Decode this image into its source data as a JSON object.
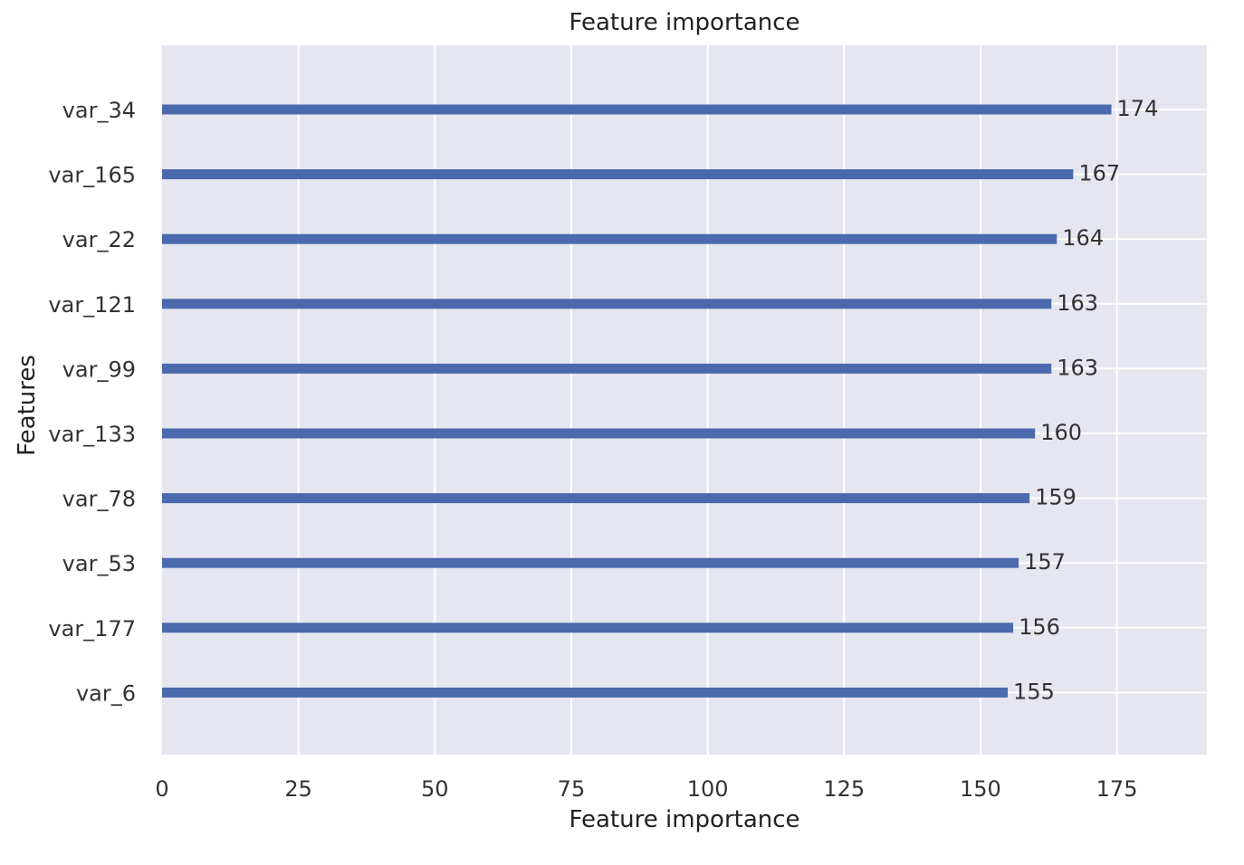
{
  "chart_data": {
    "type": "bar",
    "orientation": "horizontal",
    "title": "Feature importance",
    "xlabel": "Feature importance",
    "ylabel": "Features",
    "categories": [
      "var_34",
      "var_165",
      "var_22",
      "var_121",
      "var_99",
      "var_133",
      "var_78",
      "var_53",
      "var_177",
      "var_6"
    ],
    "values": [
      174,
      167,
      164,
      163,
      163,
      160,
      159,
      157,
      156,
      155
    ],
    "value_labels": [
      "174",
      "167",
      "164",
      "163",
      "163",
      "160",
      "159",
      "157",
      "156",
      "155"
    ],
    "xticks": [
      0,
      25,
      50,
      75,
      100,
      125,
      150,
      175
    ],
    "xtick_labels": [
      "0",
      "25",
      "50",
      "75",
      "100",
      "125",
      "150",
      "175"
    ],
    "xlim": [
      0,
      191.5
    ],
    "grid": true,
    "legend": false,
    "colors": {
      "bar": "#4a6aad",
      "plot_background": "#e5e6ef",
      "grid": "#ffffff"
    }
  }
}
